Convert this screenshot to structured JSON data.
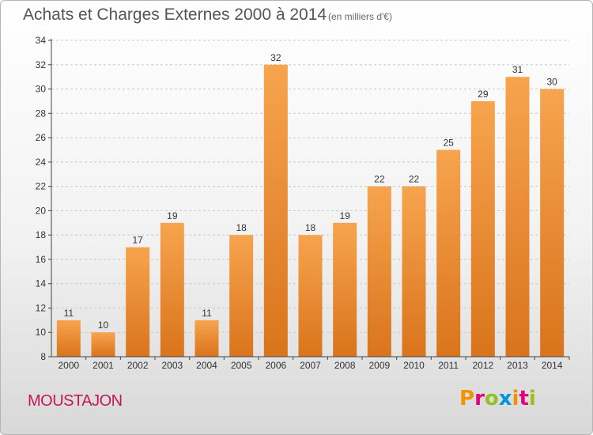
{
  "title": "Achats et Charges Externes 2000 à 2014",
  "subtitle": "(en milliers d'€)",
  "commune": "MOUSTAJON",
  "brand": {
    "text": "Proxiti",
    "letters": [
      {
        "char": "P",
        "color": "#f39200"
      },
      {
        "char": "r",
        "color": "#e5007d"
      },
      {
        "char": "o",
        "color": "#94c11f"
      },
      {
        "char": "x",
        "color": "#0095db"
      },
      {
        "char": "i",
        "color": "#f39200"
      },
      {
        "char": "t",
        "color": "#e5007d"
      },
      {
        "char": "i",
        "color": "#94c11f"
      }
    ]
  },
  "colors": {
    "bar_top": "#f7a44e",
    "bar_bottom": "#d9741c",
    "grid": "#c8c8c8",
    "axis": "#444444",
    "commune": "#c2185b"
  },
  "chart_data": {
    "type": "bar",
    "title": "Achats et Charges Externes 2000 à 2014",
    "subtitle": "(en milliers d'€)",
    "categories": [
      "2000",
      "2001",
      "2002",
      "2003",
      "2004",
      "2005",
      "2006",
      "2007",
      "2008",
      "2009",
      "2010",
      "2011",
      "2012",
      "2013",
      "2014"
    ],
    "values": [
      11,
      10,
      17,
      19,
      11,
      18,
      32,
      18,
      19,
      22,
      22,
      25,
      29,
      31,
      30
    ],
    "xlabel": "",
    "ylabel": "",
    "ylim": [
      8,
      34
    ],
    "yticks": [
      8,
      10,
      12,
      14,
      16,
      18,
      20,
      22,
      24,
      26,
      28,
      30,
      32,
      34
    ],
    "grid": true,
    "legend": "none"
  }
}
